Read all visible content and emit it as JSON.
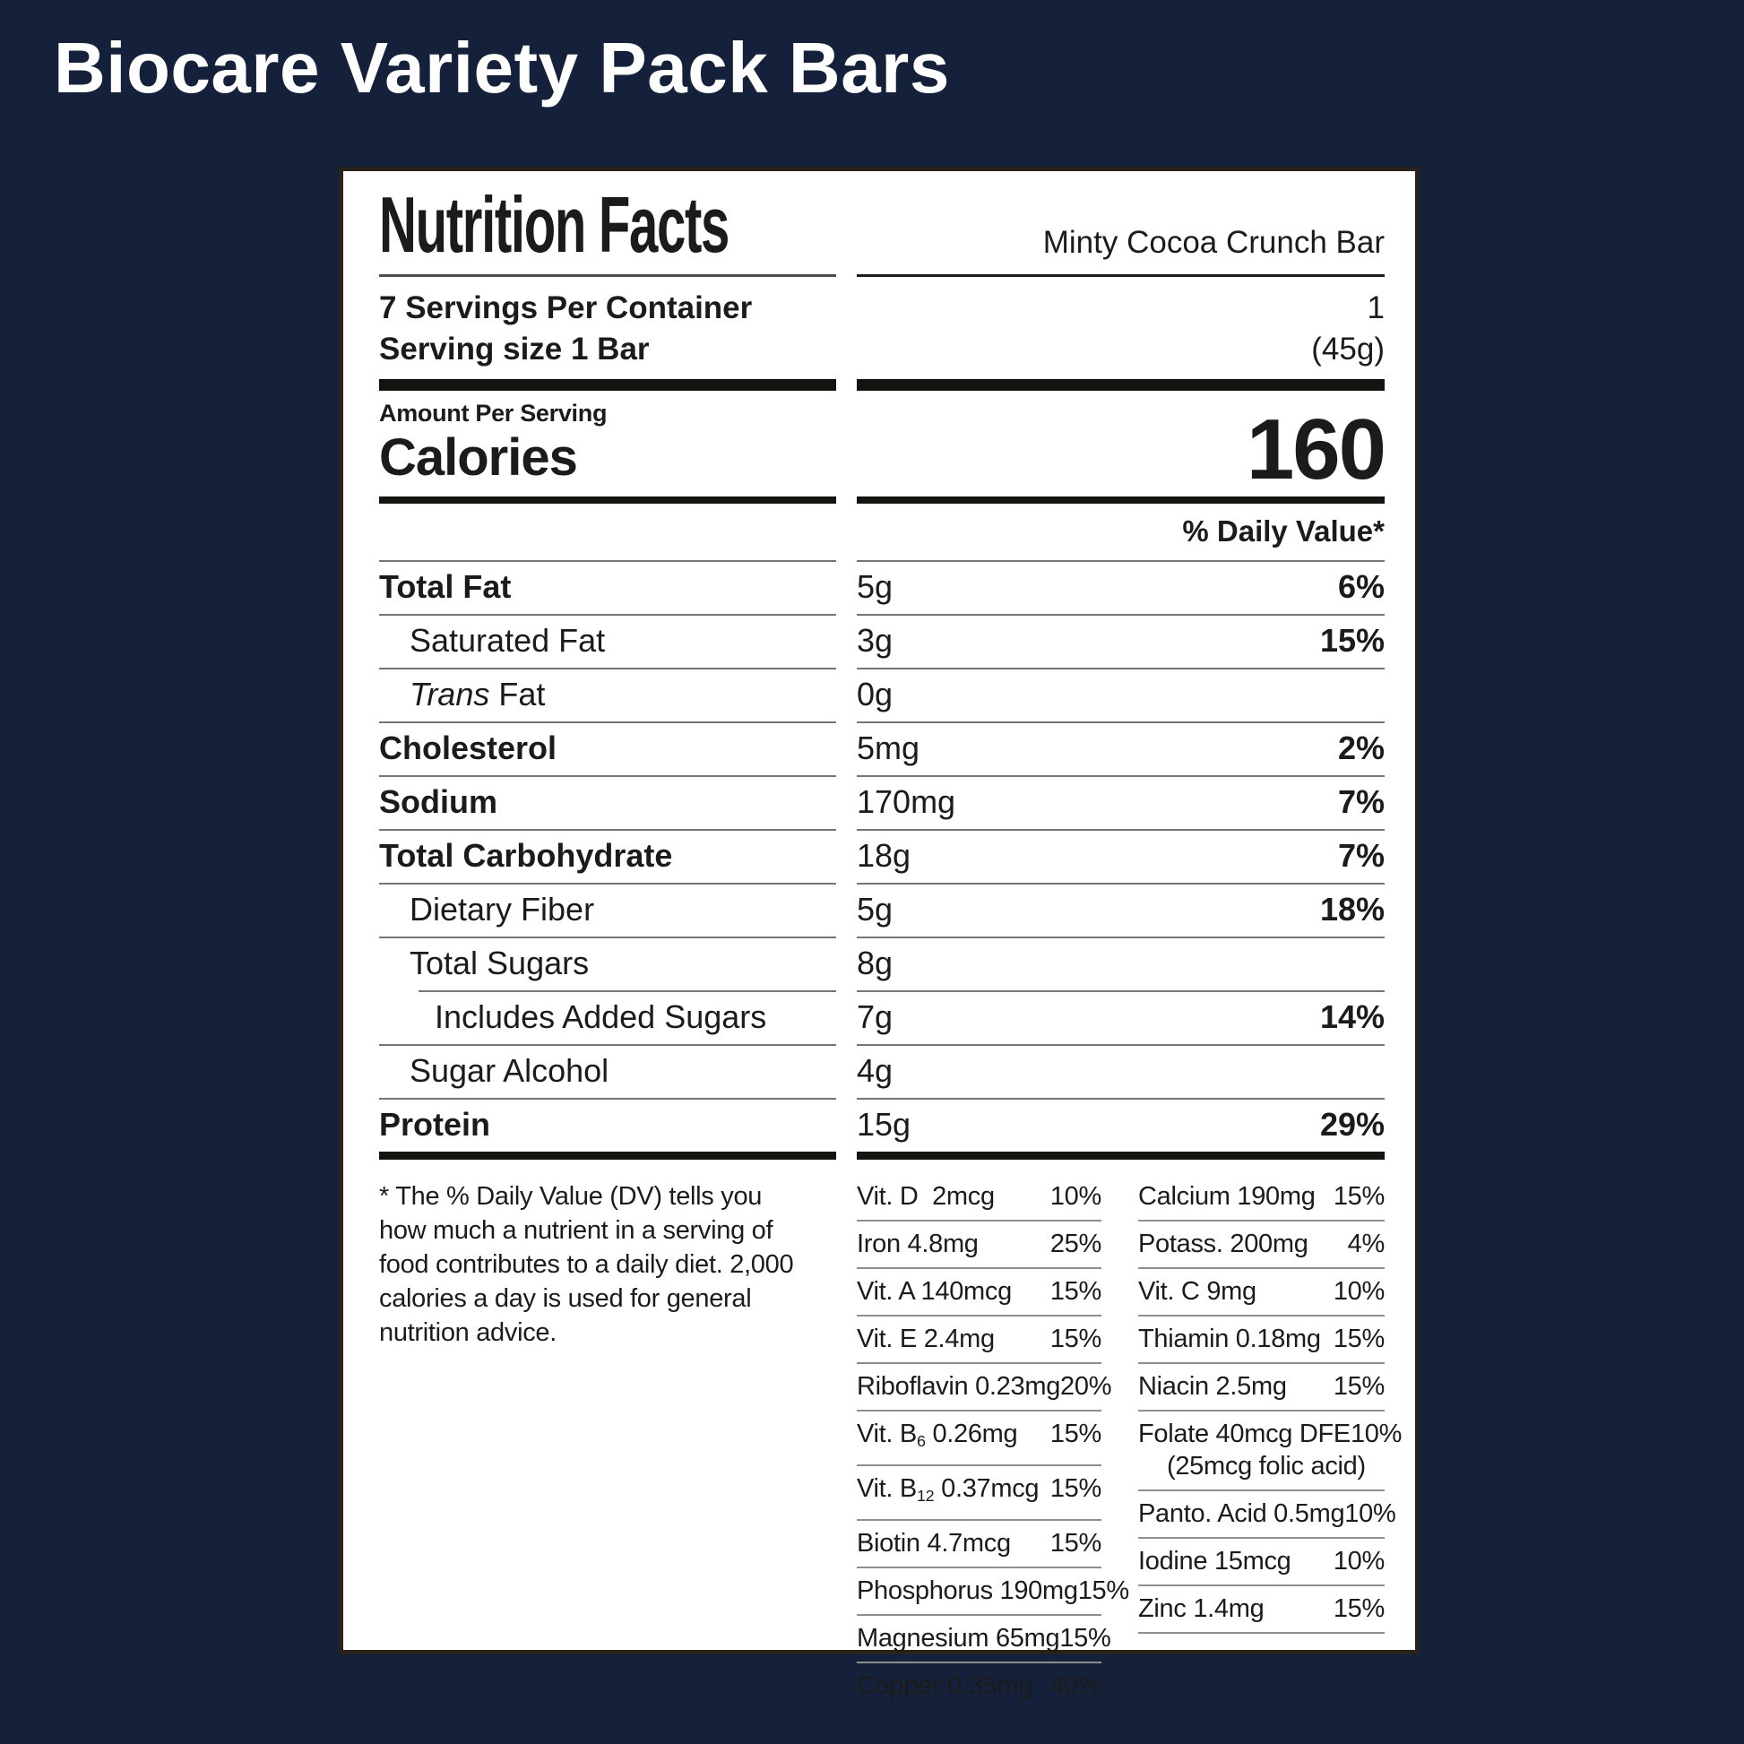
{
  "colors": {
    "background": "#15213A",
    "panel": "#FFFFFF",
    "panel_border": "#2A231C",
    "text": "#1C1B19",
    "title_text": "#FFFFFF"
  },
  "page_title": "Biocare Variety Pack Bars",
  "label": {
    "heading": "Nutrition Facts",
    "product_name": "Minty Cocoa Crunch Bar",
    "servings_per_container": "7 Servings Per Container",
    "serving_size": "Serving size 1 Bar",
    "serving_count": "1",
    "serving_weight": "(45g)",
    "amount_per_serving": "Amount Per Serving",
    "calories_label": "Calories",
    "calories_value": "160",
    "daily_value_header": "% Daily Value*",
    "nutrients": [
      {
        "parts": [
          {
            "t": "Total Fat"
          }
        ],
        "bold": true,
        "indent": 0,
        "amount": "5g",
        "dv": "6%"
      },
      {
        "parts": [
          {
            "t": "Saturated Fat"
          }
        ],
        "indent": 1,
        "amount": "3g",
        "dv": "15%"
      },
      {
        "parts": [
          {
            "t": "Trans",
            "i": true
          },
          {
            "t": " Fat"
          }
        ],
        "indent": 1,
        "amount": "0g",
        "dv": ""
      },
      {
        "parts": [
          {
            "t": "Cholesterol"
          }
        ],
        "bold": true,
        "indent": 0,
        "amount": "5mg",
        "dv": "2%"
      },
      {
        "parts": [
          {
            "t": "Sodium"
          }
        ],
        "bold": true,
        "indent": 0,
        "amount": "170mg",
        "dv": "7%"
      },
      {
        "parts": [
          {
            "t": "Total Carbohydrate"
          }
        ],
        "bold": true,
        "indent": 0,
        "amount": "18g",
        "dv": "7%"
      },
      {
        "parts": [
          {
            "t": "Dietary Fiber"
          }
        ],
        "indent": 1,
        "amount": "5g",
        "dv": "18%"
      },
      {
        "parts": [
          {
            "t": "Total Sugars"
          }
        ],
        "indent": 1,
        "amount": "8g",
        "dv": ""
      },
      {
        "parts": [
          {
            "t": "Includes Added Sugars"
          }
        ],
        "indent": 2,
        "divider_indent": true,
        "amount": "7g",
        "dv": "14%"
      },
      {
        "parts": [
          {
            "t": "Sugar Alcohol"
          }
        ],
        "indent": 1,
        "amount": "4g",
        "dv": ""
      },
      {
        "parts": [
          {
            "t": "Protein"
          }
        ],
        "bold": true,
        "indent": 0,
        "amount": "15g",
        "dv": "29%"
      }
    ],
    "footnote": "* The % Daily Value (DV) tells you how much a nutrient in a serving of food contributes to a daily diet. 2,000 calories a day is used for general nutrition advice.",
    "micros_left": [
      {
        "parts": [
          {
            "t": "Vit. D  2mcg"
          }
        ],
        "dv": "10%"
      },
      {
        "parts": [
          {
            "t": "Iron 4.8mg"
          }
        ],
        "dv": "25%"
      },
      {
        "parts": [
          {
            "t": "Vit. A 140mcg"
          }
        ],
        "dv": "15%"
      },
      {
        "parts": [
          {
            "t": "Vit. E 2.4mg"
          }
        ],
        "dv": "15%"
      },
      {
        "parts": [
          {
            "t": "Riboflavin 0.23mg"
          }
        ],
        "dv": "20%"
      },
      {
        "parts": [
          {
            "t": "Vit. B"
          },
          {
            "t": "6",
            "sub": true
          },
          {
            "t": " 0.26mg"
          }
        ],
        "dv": "15%"
      },
      {
        "parts": [
          {
            "t": "Vit. B"
          },
          {
            "t": "12",
            "sub": true
          },
          {
            "t": " 0.37mcg"
          }
        ],
        "dv": "15%"
      },
      {
        "parts": [
          {
            "t": "Biotin 4.7mcg"
          }
        ],
        "dv": "15%"
      },
      {
        "parts": [
          {
            "t": "Phosphorus 190mg"
          }
        ],
        "dv": "15%"
      },
      {
        "parts": [
          {
            "t": "Magnesium 65mg"
          }
        ],
        "dv": "15%"
      },
      {
        "parts": [
          {
            "t": "Copper 0.35mg"
          }
        ],
        "dv": "40%",
        "noline": true
      }
    ],
    "micros_right": [
      {
        "parts": [
          {
            "t": "Calcium 190mg"
          }
        ],
        "dv": "15%"
      },
      {
        "parts": [
          {
            "t": "Potass. 200mg"
          }
        ],
        "dv": "4%"
      },
      {
        "parts": [
          {
            "t": "Vit. C 9mg"
          }
        ],
        "dv": "10%"
      },
      {
        "parts": [
          {
            "t": "Thiamin 0.18mg"
          }
        ],
        "dv": "15%"
      },
      {
        "parts": [
          {
            "t": "Niacin 2.5mg"
          }
        ],
        "dv": "15%"
      },
      {
        "parts": [
          {
            "t": "Folate 40mcg DFE"
          }
        ],
        "dv": "10%",
        "note": "(25mcg folic acid)"
      },
      {
        "parts": [
          {
            "t": "Panto. Acid 0.5mg"
          }
        ],
        "dv": "10%"
      },
      {
        "parts": [
          {
            "t": "Iodine 15mcg"
          }
        ],
        "dv": "10%"
      },
      {
        "parts": [
          {
            "t": "Zinc 1.4mg"
          }
        ],
        "dv": "15%"
      }
    ]
  }
}
